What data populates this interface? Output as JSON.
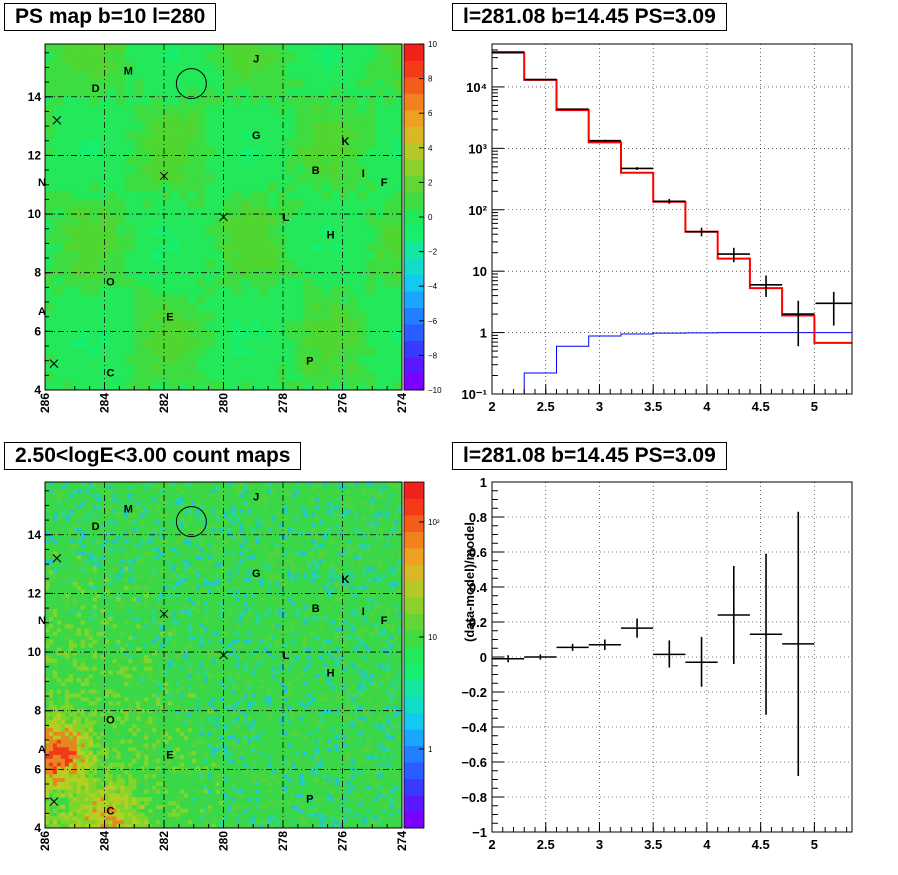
{
  "panels": {
    "ps_map_title": "PS map b=10 l=280",
    "spectrum_title": "l=281.08 b=14.45 PS=3.09",
    "count_map_title": "2.50<logE<3.00 count maps",
    "residual_title": "l=281.08 b=14.45 PS=3.09"
  },
  "maps": {
    "x_ticks": [
      "286",
      "284",
      "282",
      "280",
      "278",
      "276",
      "274"
    ],
    "y_ticks": [
      "4",
      "6",
      "8",
      "10",
      "12",
      "14"
    ],
    "labels": [
      {
        "text": "M",
        "l": 283.2,
        "b": 14.9
      },
      {
        "text": "J",
        "l": 278.9,
        "b": 15.3
      },
      {
        "text": "D",
        "l": 284.3,
        "b": 14.3
      },
      {
        "text": "G",
        "l": 278.9,
        "b": 12.7
      },
      {
        "text": "K",
        "l": 275.9,
        "b": 12.5
      },
      {
        "text": "N",
        "l": 286.1,
        "b": 11.1
      },
      {
        "text": "B",
        "l": 276.9,
        "b": 11.5
      },
      {
        "text": "I",
        "l": 275.3,
        "b": 11.4
      },
      {
        "text": "F",
        "l": 274.6,
        "b": 11.1
      },
      {
        "text": "L",
        "l": 277.9,
        "b": 9.9
      },
      {
        "text": "H",
        "l": 276.4,
        "b": 9.3
      },
      {
        "text": "O",
        "l": 283.8,
        "b": 7.7
      },
      {
        "text": "A",
        "l": 286.1,
        "b": 6.7
      },
      {
        "text": "E",
        "l": 281.8,
        "b": 6.5
      },
      {
        "text": "P",
        "l": 277.1,
        "b": 5.0
      },
      {
        "text": "C",
        "l": 283.8,
        "b": 4.6
      }
    ],
    "crosses": [
      {
        "l": 285.6,
        "b": 13.2
      },
      {
        "l": 282.0,
        "b": 11.3
      },
      {
        "l": 280.0,
        "b": 9.9
      },
      {
        "l": 285.7,
        "b": 4.9
      }
    ],
    "circle": {
      "l": 281.08,
      "b": 14.45
    },
    "ps_palette_ticks": [
      "10",
      "8",
      "6",
      "4",
      "2",
      "0",
      "−2",
      "−4",
      "−6",
      "−8",
      "−10"
    ],
    "count_palette_ticks": [
      "10²",
      "10",
      "1"
    ]
  },
  "chart_data": [
    {
      "type": "heatmap",
      "title": "PS map b=10 l=280",
      "xlim": [
        286,
        274
      ],
      "ylim": [
        4,
        15.8
      ],
      "zlim": [
        -10,
        10
      ],
      "description_values": "mostly near 0 to +1 (green)"
    },
    {
      "type": "line",
      "title": "l=281.08 b=14.45 PS=3.09",
      "xlim": [
        2,
        5.35
      ],
      "ylim": [
        0.1,
        50000
      ],
      "log_y": true,
      "grid": true,
      "bin_edges": [
        2.0,
        2.3,
        2.6,
        2.9,
        3.2,
        3.5,
        3.8,
        4.1,
        4.4,
        4.7,
        5.0,
        5.35
      ],
      "series": [
        {
          "color": "#ff0000",
          "values": [
            36000,
            13000,
            4200,
            1250,
            400,
            135,
            44,
            16,
            5.3,
            1.9,
            0.68
          ]
        },
        {
          "color": "#0000ff",
          "values": [
            0.1,
            0.22,
            0.6,
            0.88,
            0.95,
            0.98,
            0.99,
            1.0,
            1.0,
            1.0,
            1.0
          ]
        },
        {
          "color": "#000000",
          "points": [
            {
              "x": 2.15,
              "y": 37000,
              "lo": 36600,
              "hi": 37400
            },
            {
              "x": 2.45,
              "y": 13200,
              "lo": 13000,
              "hi": 13400
            },
            {
              "x": 2.75,
              "y": 4350,
              "lo": 4250,
              "hi": 4450
            },
            {
              "x": 3.05,
              "y": 1330,
              "lo": 1280,
              "hi": 1380
            },
            {
              "x": 3.35,
              "y": 470,
              "lo": 445,
              "hi": 495
            },
            {
              "x": 3.65,
              "y": 137,
              "lo": 125,
              "hi": 150
            },
            {
              "x": 3.95,
              "y": 44,
              "lo": 37,
              "hi": 51
            },
            {
              "x": 4.25,
              "y": 19,
              "lo": 14,
              "hi": 24
            },
            {
              "x": 4.55,
              "y": 6.0,
              "lo": 3.8,
              "hi": 8.5
            },
            {
              "x": 4.85,
              "y": 2.0,
              "lo": 0.6,
              "hi": 3.3
            },
            {
              "x": 5.18,
              "y": 3.0,
              "lo": 1.3,
              "hi": 4.6
            }
          ]
        }
      ],
      "x_ticks": [
        "2",
        "2.5",
        "3",
        "3.5",
        "4",
        "4.5",
        "5"
      ],
      "y_ticks": [
        "10⁻¹",
        "1",
        "10",
        "10²",
        "10³",
        "10⁴"
      ]
    },
    {
      "type": "heatmap",
      "title": "2.50<logE<3.00 count maps",
      "xlim": [
        286,
        274
      ],
      "ylim": [
        4,
        15.8
      ],
      "log_z": true
    },
    {
      "type": "scatter",
      "title": "l=281.08 b=14.45 PS=3.09",
      "ylabel": "(data-model)/model",
      "xlim": [
        2,
        5.35
      ],
      "ylim": [
        -1,
        1
      ],
      "grid": true,
      "points": [
        {
          "x": 2.15,
          "y": -0.01,
          "xerr": 0.15,
          "lo": -0.03,
          "hi": 0.01
        },
        {
          "x": 2.45,
          "y": 0.0,
          "xerr": 0.15,
          "lo": -0.015,
          "hi": 0.015
        },
        {
          "x": 2.75,
          "y": 0.055,
          "xerr": 0.15,
          "lo": 0.035,
          "hi": 0.075
        },
        {
          "x": 3.05,
          "y": 0.07,
          "xerr": 0.15,
          "lo": 0.04,
          "hi": 0.1
        },
        {
          "x": 3.35,
          "y": 0.165,
          "xerr": 0.15,
          "lo": 0.11,
          "hi": 0.22
        },
        {
          "x": 3.65,
          "y": 0.015,
          "xerr": 0.15,
          "lo": -0.06,
          "hi": 0.095
        },
        {
          "x": 3.95,
          "y": -0.03,
          "xerr": 0.15,
          "lo": -0.17,
          "hi": 0.115
        },
        {
          "x": 4.25,
          "y": 0.24,
          "xerr": 0.15,
          "lo": -0.04,
          "hi": 0.52
        },
        {
          "x": 4.55,
          "y": 0.13,
          "xerr": 0.15,
          "lo": -0.33,
          "hi": 0.59
        },
        {
          "x": 4.85,
          "y": 0.075,
          "xerr": 0.15,
          "lo": -0.68,
          "hi": 0.83
        }
      ],
      "x_ticks": [
        "2",
        "2.5",
        "3",
        "3.5",
        "4",
        "4.5",
        "5"
      ],
      "y_ticks": [
        "−1",
        "−0.8",
        "−0.6",
        "−0.4",
        "−0.2",
        "0",
        "0.2",
        "0.4",
        "0.6",
        "0.8",
        "1"
      ]
    }
  ]
}
